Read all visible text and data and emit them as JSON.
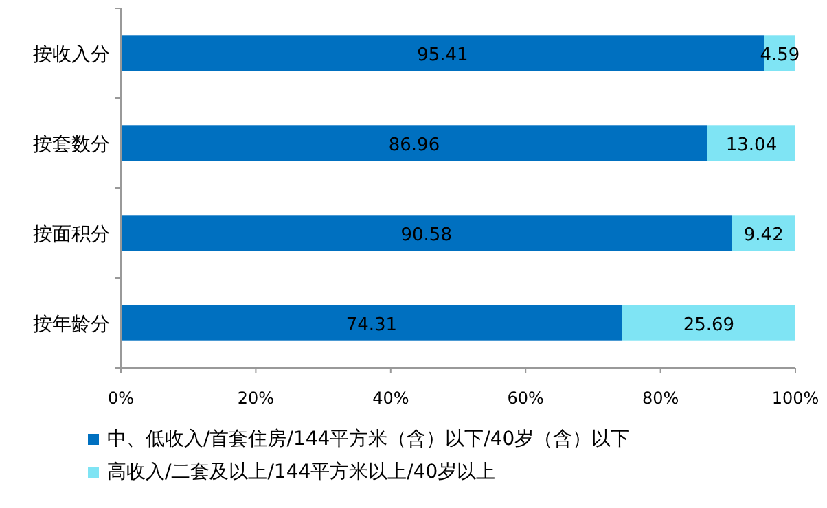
{
  "chart_data": {
    "type": "bar",
    "orientation": "horizontal",
    "stacked": true,
    "categories": [
      "按收入分",
      "按套数分",
      "按面积分",
      "按年龄分"
    ],
    "series": [
      {
        "name": "中、低收入/首套住房/144平方米（含）以下/40岁（含）以下",
        "color": "#0070c0",
        "values": [
          95.41,
          86.96,
          90.58,
          74.31
        ]
      },
      {
        "name": "高收入/二套及以上/144平方米以上/40岁以上",
        "color": "#7fe4f4",
        "values": [
          4.59,
          13.04,
          9.42,
          25.69
        ]
      }
    ],
    "xlim": [
      0,
      100
    ],
    "xticks": [
      {
        "value": 0,
        "label": "0%"
      },
      {
        "value": 20,
        "label": "20%"
      },
      {
        "value": 40,
        "label": "40%"
      },
      {
        "value": 60,
        "label": "60%"
      },
      {
        "value": 80,
        "label": "80%"
      },
      {
        "value": 100,
        "label": "100%"
      }
    ],
    "data_labels": true,
    "legend": "bottom",
    "grid": false
  }
}
